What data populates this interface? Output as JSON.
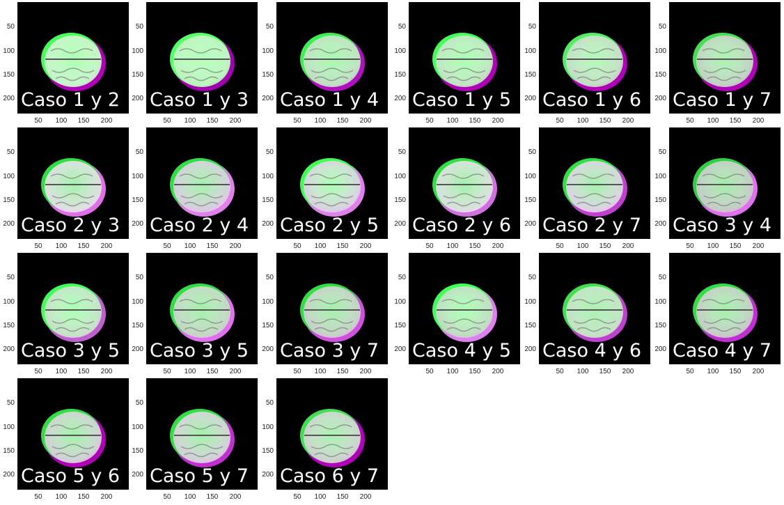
{
  "panels": [
    {
      "caption": "Caso 1 y 2",
      "mag": "#b000b8",
      "grn": "#44ff55",
      "tone": "#c8f0c8"
    },
    {
      "caption": "Caso 1 y 3",
      "mag": "#a000b0",
      "grn": "#55ff66",
      "tone": "#b8f0b8"
    },
    {
      "caption": "Caso 1 y 4",
      "mag": "#b010c0",
      "grn": "#3cf050",
      "tone": "#c0d8c0"
    },
    {
      "caption": "Caso 1 y 5",
      "mag": "#b000b8",
      "grn": "#40ff55",
      "tone": "#c0dcc0"
    },
    {
      "caption": "Caso 1 y 6",
      "mag": "#b000b8",
      "grn": "#50f060",
      "tone": "#c4d4c4"
    },
    {
      "caption": "Caso 1 y 7",
      "mag": "#b000b8",
      "grn": "#44e050",
      "tone": "#c0c8c0"
    },
    {
      "caption": "Caso 2 y 3",
      "mag": "#e070e8",
      "grn": "#30e040",
      "tone": "#e8d8ec"
    },
    {
      "caption": "Caso 2 y 4",
      "mag": "#e080ec",
      "grn": "#30e040",
      "tone": "#e0c0e8"
    },
    {
      "caption": "Caso 2 y 5",
      "mag": "#e080ec",
      "grn": "#40ff50",
      "tone": "#e0c4e8"
    },
    {
      "caption": "Caso 2 y 6",
      "mag": "#d070e0",
      "grn": "#30e040",
      "tone": "#e4d8e8"
    },
    {
      "caption": "Caso 2 y 7",
      "mag": "#c040d0",
      "grn": "#30e040",
      "tone": "#e4c8ec"
    },
    {
      "caption": "Caso 3 y 4",
      "mag": "#e070f0",
      "grn": "#30d040",
      "tone": "#c8c0c8"
    },
    {
      "caption": "Caso 3 y 5",
      "mag": "#c060d0",
      "grn": "#40ff55",
      "tone": "#c8d8c8"
    },
    {
      "caption": "Caso 3 y 5",
      "mag": "#e070f0",
      "grn": "#30e040",
      "tone": "#c8ccc8"
    },
    {
      "caption": "Caso 3 y 7",
      "mag": "#d050e0",
      "grn": "#30e040",
      "tone": "#ccc4cc"
    },
    {
      "caption": "Caso 4 y 5",
      "mag": "#e080f0",
      "grn": "#40ff55",
      "tone": "#c0d0c0"
    },
    {
      "caption": "Caso 4 y 6",
      "mag": "#c040d0",
      "grn": "#40e050",
      "tone": "#c4dcc4"
    },
    {
      "caption": "Caso 4 y 7",
      "mag": "#c030d0",
      "grn": "#30e040",
      "tone": "#c8c0c8"
    },
    {
      "caption": "Caso 5 y 6",
      "mag": "#b000b8",
      "grn": "#30e040",
      "tone": "#d8c4dc"
    },
    {
      "caption": "Caso 5 y 7",
      "mag": "#c030d0",
      "grn": "#30e040",
      "tone": "#dcc4e0"
    },
    {
      "caption": "Caso 6 y 7",
      "mag": "#b000b8",
      "grn": "#40e050",
      "tone": "#d0c8d0"
    }
  ],
  "axis": {
    "y_ticks": [
      "50",
      "100",
      "150",
      "200"
    ],
    "x_ticks": [
      "50",
      "100",
      "150",
      "200"
    ]
  }
}
